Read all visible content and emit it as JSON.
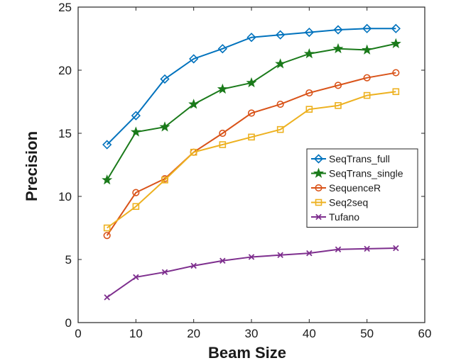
{
  "chart_data": {
    "type": "line",
    "xlabel": "Beam Size",
    "ylabel": "Precision",
    "xlim": [
      0,
      60
    ],
    "ylim": [
      0,
      25
    ],
    "xticks": [
      0,
      10,
      20,
      30,
      40,
      50,
      60
    ],
    "yticks": [
      0,
      5,
      10,
      15,
      20,
      25
    ],
    "grid": false,
    "legend_position": "right",
    "x": [
      5,
      10,
      15,
      20,
      25,
      30,
      35,
      40,
      45,
      50,
      55
    ],
    "series": [
      {
        "name": "SeqTrans_full",
        "color": "#0072BD",
        "marker": "diamond",
        "values": [
          14.1,
          16.4,
          19.3,
          20.9,
          21.7,
          22.6,
          22.8,
          23.0,
          23.2,
          23.3,
          23.3
        ]
      },
      {
        "name": "SeqTrans_single",
        "color": "#1A7A1A",
        "marker": "star",
        "values": [
          11.3,
          15.1,
          15.5,
          17.3,
          18.5,
          19.0,
          20.5,
          21.3,
          21.7,
          21.6,
          22.1
        ]
      },
      {
        "name": "SequenceR",
        "color": "#D95319",
        "marker": "circle",
        "values": [
          6.9,
          10.3,
          11.4,
          13.5,
          15.0,
          16.6,
          17.3,
          18.2,
          18.8,
          19.4,
          19.8
        ]
      },
      {
        "name": "Seq2seq",
        "color": "#EDB120",
        "marker": "square",
        "values": [
          7.5,
          9.2,
          11.3,
          13.5,
          14.1,
          14.7,
          15.3,
          16.9,
          17.2,
          18.0,
          18.3
        ]
      },
      {
        "name": "Tufano",
        "color": "#7E2F8E",
        "marker": "x",
        "values": [
          2.0,
          3.6,
          4.0,
          4.5,
          4.9,
          5.2,
          5.35,
          5.5,
          5.8,
          5.85,
          5.9
        ]
      }
    ]
  }
}
